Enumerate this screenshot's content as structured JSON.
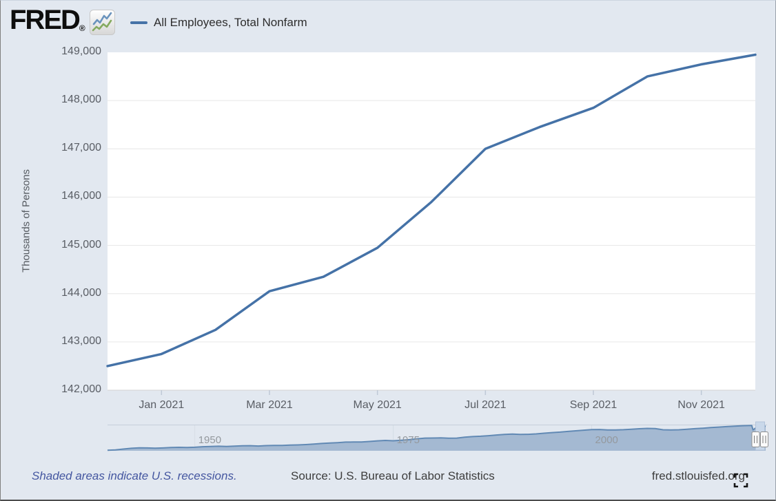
{
  "colors": {
    "accent": "#4572a7",
    "nav_fill": "#a4b9d2",
    "nav_line": "#6189b4",
    "link": "#4456a0",
    "background": "#e2e8f0"
  },
  "header": {
    "logo_text": "FRED",
    "registered_mark": "®",
    "logo_icon": "fred-sparkline-icon",
    "legend": {
      "label": "All Employees, Total Nonfarm",
      "dash_color": "#4572a7"
    }
  },
  "chart_data": [
    {
      "type": "line",
      "series_name": "All Employees, Total Nonfarm",
      "ylabel": "Thousands of Persons",
      "x": [
        "Dec 2020",
        "Jan 2021",
        "Feb 2021",
        "Mar 2021",
        "Apr 2021",
        "May 2021",
        "Jun 2021",
        "Jul 2021",
        "Aug 2021",
        "Sep 2021",
        "Oct 2021",
        "Nov 2021",
        "Dec 2021"
      ],
      "values": [
        142500,
        142750,
        143250,
        144050,
        144350,
        144950,
        145900,
        147000,
        147450,
        147850,
        148500,
        148750,
        148950
      ],
      "ylim": [
        142000,
        149000
      ],
      "ytick_labels": [
        "149,000",
        "148,000",
        "147,000",
        "146,000",
        "145,000",
        "144,000",
        "143,000",
        "142,000"
      ],
      "xticks": [
        {
          "label": "Jan 2021",
          "month_index": 1
        },
        {
          "label": "Mar 2021",
          "month_index": 3
        },
        {
          "label": "May 2021",
          "month_index": 5
        },
        {
          "label": "Jul 2021",
          "month_index": 7
        },
        {
          "label": "Sep 2021",
          "month_index": 9
        },
        {
          "label": "Nov 2021",
          "month_index": 11
        }
      ],
      "grid": "horizontal-only",
      "legend_position": "top-left",
      "line_color": "#4572a7"
    },
    {
      "type": "area",
      "role": "range-selector-navigator",
      "x_range": [
        1939,
        2022
      ],
      "points": [
        [
          1939,
          30600
        ],
        [
          1940,
          32400
        ],
        [
          1941,
          36500
        ],
        [
          1942,
          40100
        ],
        [
          1943,
          42500
        ],
        [
          1944,
          41900
        ],
        [
          1945,
          40400
        ],
        [
          1946,
          41700
        ],
        [
          1947,
          43900
        ],
        [
          1948,
          44900
        ],
        [
          1949,
          43800
        ],
        [
          1950,
          45200
        ],
        [
          1951,
          47800
        ],
        [
          1952,
          48800
        ],
        [
          1953,
          50200
        ],
        [
          1954,
          49000
        ],
        [
          1955,
          50700
        ],
        [
          1956,
          52400
        ],
        [
          1957,
          52900
        ],
        [
          1958,
          51300
        ],
        [
          1959,
          53300
        ],
        [
          1960,
          54200
        ],
        [
          1961,
          54000
        ],
        [
          1962,
          55600
        ],
        [
          1963,
          56700
        ],
        [
          1964,
          58300
        ],
        [
          1965,
          60900
        ],
        [
          1966,
          63900
        ],
        [
          1967,
          65800
        ],
        [
          1968,
          67900
        ],
        [
          1969,
          70400
        ],
        [
          1970,
          71000
        ],
        [
          1971,
          71300
        ],
        [
          1972,
          73700
        ],
        [
          1973,
          76800
        ],
        [
          1974,
          78600
        ],
        [
          1975,
          77000
        ],
        [
          1976,
          79400
        ],
        [
          1977,
          82500
        ],
        [
          1978,
          86700
        ],
        [
          1979,
          90000
        ],
        [
          1980,
          90500
        ],
        [
          1981,
          91300
        ],
        [
          1982,
          89500
        ],
        [
          1983,
          90200
        ],
        [
          1984,
          94500
        ],
        [
          1985,
          97500
        ],
        [
          1986,
          99400
        ],
        [
          1987,
          102000
        ],
        [
          1988,
          105300
        ],
        [
          1989,
          108000
        ],
        [
          1990,
          109800
        ],
        [
          1991,
          108300
        ],
        [
          1992,
          108600
        ],
        [
          1993,
          110800
        ],
        [
          1994,
          114300
        ],
        [
          1995,
          117300
        ],
        [
          1996,
          119700
        ],
        [
          1997,
          122800
        ],
        [
          1998,
          126000
        ],
        [
          1999,
          129000
        ],
        [
          2000,
          131800
        ],
        [
          2001,
          132500
        ],
        [
          2002,
          130300
        ],
        [
          2003,
          130000
        ],
        [
          2004,
          131400
        ],
        [
          2005,
          133700
        ],
        [
          2006,
          136100
        ],
        [
          2007,
          137900
        ],
        [
          2008,
          137000
        ],
        [
          2009,
          131200
        ],
        [
          2010,
          129900
        ],
        [
          2011,
          131200
        ],
        [
          2012,
          133700
        ],
        [
          2013,
          136400
        ],
        [
          2014,
          138900
        ],
        [
          2015,
          141800
        ],
        [
          2016,
          144300
        ],
        [
          2017,
          146600
        ],
        [
          2018,
          148900
        ],
        [
          2019,
          150900
        ],
        [
          2020.17,
          152000
        ],
        [
          2020.33,
          130500
        ],
        [
          2020.75,
          142200
        ],
        [
          2021,
          142700
        ],
        [
          2021.5,
          146100
        ],
        [
          2021.92,
          148900
        ]
      ],
      "xticks": [
        {
          "label": "1950",
          "year": 1950
        },
        {
          "label": "1975",
          "year": 1975
        },
        {
          "label": "2000",
          "year": 2000
        }
      ],
      "fill_color": "#a4b9d2",
      "line_color": "#6189b4"
    }
  ],
  "footer": {
    "recessions_note": "Shaded areas indicate U.S. recessions.",
    "source": "Source: U.S. Bureau of Labor Statistics",
    "site": "fred.stlouisfed.org"
  }
}
